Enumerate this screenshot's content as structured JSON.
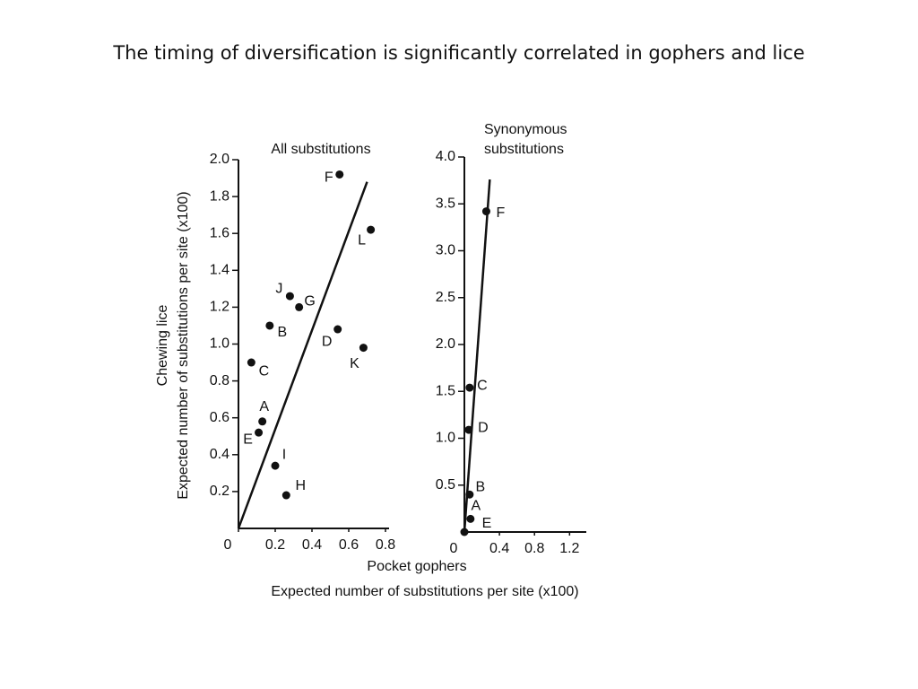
{
  "title": "The timing of diversification is significantly correlated in gophers and lice",
  "xlabel_lines": [
    "Pocket gophers",
    "Expected number of substitutions per site (x100)"
  ],
  "ylabel_lines": [
    "Chewing lice",
    "Expected number of substitutions per site (x100)"
  ],
  "chart_data": [
    {
      "type": "scatter",
      "title": [
        "All substitutions"
      ],
      "color": "#111111",
      "point_labels": [
        "F",
        "L",
        "J",
        "G",
        "B",
        "D",
        "K",
        "C",
        "A",
        "E",
        "I",
        "H"
      ],
      "x": [
        0.55,
        0.72,
        0.28,
        0.33,
        0.17,
        0.54,
        0.68,
        0.07,
        0.13,
        0.11,
        0.2,
        0.26
      ],
      "values": [
        1.92,
        1.62,
        1.26,
        1.2,
        1.1,
        1.08,
        0.98,
        0.9,
        0.58,
        0.52,
        0.34,
        0.18
      ],
      "fit": {
        "x": [
          0,
          0.7
        ],
        "values": [
          0,
          1.88
        ]
      },
      "xlim": [
        0,
        0.8
      ],
      "xticks": [
        0,
        0.2,
        0.4,
        0.6,
        0.8
      ],
      "ylim": [
        0,
        2.0
      ],
      "yticks": [
        0.2,
        0.4,
        0.6,
        0.8,
        {
          "value": 1.0,
          "label": "1.0"
        },
        1.2,
        1.4,
        1.6,
        1.8,
        {
          "value": 2.0,
          "label": "2.0"
        }
      ]
    },
    {
      "type": "scatter",
      "title": [
        "Synonymous",
        "substitutions"
      ],
      "color": "#111111",
      "point_labels": [
        "F",
        "C",
        "D",
        "B",
        "A",
        "E"
      ],
      "x": [
        0.25,
        0.06,
        0.05,
        0.06,
        0.07,
        0
      ],
      "values": [
        3.42,
        1.54,
        1.09,
        0.4,
        0.14,
        0
      ],
      "fit": {
        "x": [
          0,
          0.29
        ],
        "values": [
          0,
          3.76
        ]
      },
      "xlim": [
        0,
        1.35
      ],
      "xticks": [
        0,
        0.4,
        0.8,
        1.2
      ],
      "ylim": [
        0,
        4.0
      ],
      "yticks": [
        0.5,
        {
          "value": 1.0,
          "label": "1.0"
        },
        1.5,
        {
          "value": 2.0,
          "label": "2.0"
        },
        2.5,
        {
          "value": 3.0,
          "label": "3.0"
        },
        3.5,
        {
          "value": 4.0,
          "label": "4.0"
        }
      ]
    }
  ]
}
